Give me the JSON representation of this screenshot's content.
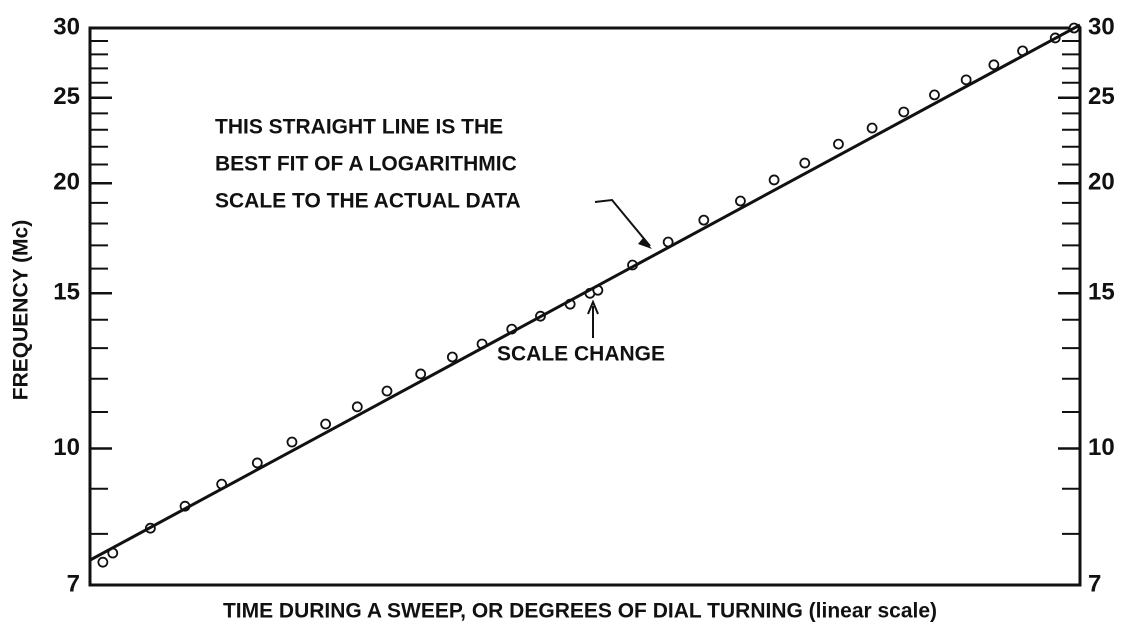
{
  "chart_data": {
    "type": "scatter",
    "xlabel": "TIME DURING A SWEEP, OR DEGREES OF DIAL TURNING  (linear scale)",
    "ylabel": "FREQUENCY (Mc)",
    "annotations": [
      "THIS STRAIGHT LINE IS THE",
      "BEST FIT OF A LOGARITHMIC",
      "SCALE TO THE ACTUAL DATA"
    ],
    "scale_change_label": "SCALE CHANGE",
    "ylog": true,
    "ylim": [
      7,
      30
    ],
    "yticks": [
      7,
      10,
      15,
      20,
      25,
      30
    ],
    "yminorticks": [
      8,
      9,
      11,
      12,
      13,
      14,
      16,
      17,
      18,
      19,
      21,
      22,
      23,
      24,
      26,
      27,
      28,
      29
    ],
    "xlim": [
      0,
      100
    ],
    "color": "#111111",
    "series": [
      {
        "kind": "points",
        "x": [
          1.3,
          2.3,
          6.1,
          9.6,
          13.3,
          16.9,
          20.4,
          23.8,
          27.0,
          30.0,
          33.4,
          36.6,
          39.6,
          42.6,
          45.5,
          48.5,
          50.5,
          51.3,
          54.8,
          58.4,
          62.0,
          65.7,
          69.1,
          72.2,
          75.6,
          79.0,
          82.2,
          85.3,
          88.5,
          91.3,
          94.2,
          97.5,
          99.4
        ],
        "values": [
          7.43,
          7.61,
          8.12,
          8.6,
          9.11,
          9.63,
          10.17,
          10.66,
          11.15,
          11.62,
          12.15,
          12.7,
          13.14,
          13.66,
          14.13,
          14.58,
          15.0,
          15.12,
          16.15,
          17.15,
          18.16,
          19.09,
          20.17,
          21.08,
          22.15,
          23.1,
          24.09,
          25.19,
          26.2,
          27.25,
          28.26,
          29.23,
          30.0
        ]
      },
      {
        "kind": "fit",
        "x": [
          0,
          100
        ],
        "values": [
          7.47,
          30.24
        ]
      }
    ]
  }
}
